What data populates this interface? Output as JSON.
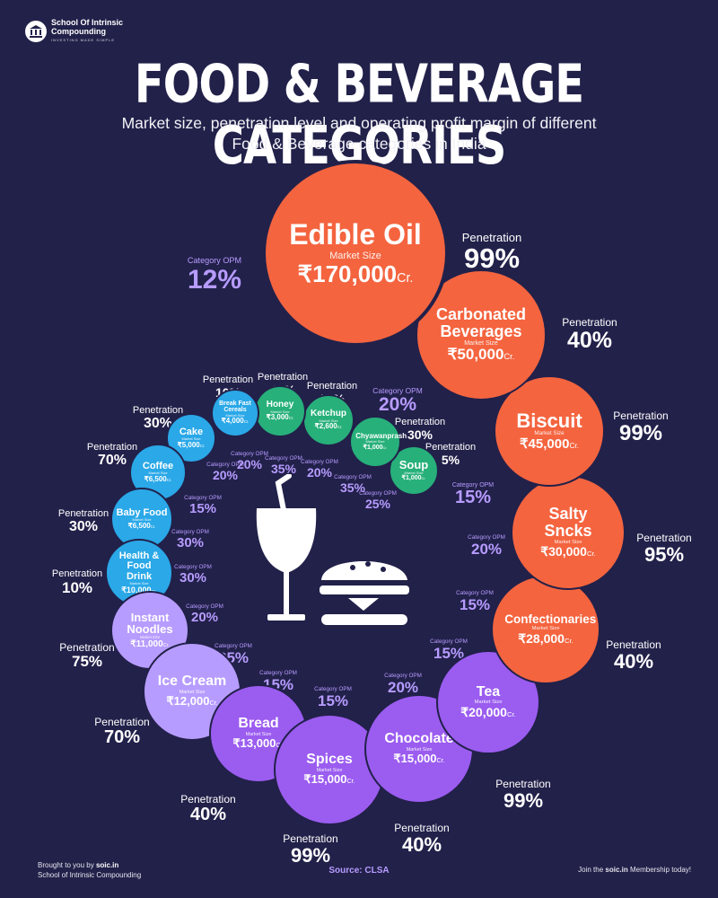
{
  "brand": {
    "name": "School Of Intrinsic Compounding",
    "tagline": "INVESTING MADE SIMPLE"
  },
  "title": "FOOD & BEVERAGE CATEGORIES",
  "subtitle": "Market size, penetration level and operating profit margin of different Food & Beverage categories in India",
  "market_size_label": "Market Size",
  "penetration_label": "Penetration",
  "opm_label": "Category OPM",
  "unit": "Cr.",
  "colors": {
    "background": "#22214a",
    "orange": "#f4643f",
    "green": "#27b07a",
    "blue": "#2aa8e8",
    "purple": "#9b5cf0",
    "lavender": "#b79cff"
  },
  "center_icon": "food-beverage-icon",
  "categories": [
    {
      "name": "Edible Oil",
      "market_size": "₹170,000",
      "penetration": "99%",
      "opm": "12%"
    },
    {
      "name": "Carbonated Beverages",
      "market_size": "₹50,000",
      "penetration": "40%",
      "opm": "20%"
    },
    {
      "name": "Biscuit",
      "market_size": "₹45,000",
      "penetration": "99%",
      "opm": "15%"
    },
    {
      "name": "Salty Sncks",
      "market_size": "₹30,000",
      "penetration": "95%",
      "opm": "20%"
    },
    {
      "name": "Confectionaries",
      "market_size": "₹28,000",
      "penetration": "40%",
      "opm": "15%"
    },
    {
      "name": "Tea",
      "market_size": "₹20,000",
      "penetration": "99%",
      "opm": "15%"
    },
    {
      "name": "Chocolate",
      "market_size": "₹15,000",
      "penetration": "40%",
      "opm": "20%"
    },
    {
      "name": "Spices",
      "market_size": "₹15,000",
      "penetration": "99%",
      "opm": "15%"
    },
    {
      "name": "Bread",
      "market_size": "₹13,000",
      "penetration": "40%",
      "opm": "15%"
    },
    {
      "name": "Ice Cream",
      "market_size": "₹12,000",
      "penetration": "70%",
      "opm": "25%"
    },
    {
      "name": "Instant Noodles",
      "market_size": "₹11,000",
      "penetration": "75%",
      "opm": "20%"
    },
    {
      "name": "Health & Food Drink",
      "market_size": "₹10,000",
      "penetration": "10%",
      "opm": "30%"
    },
    {
      "name": "Baby Food",
      "market_size": "₹6,500",
      "penetration": "30%",
      "opm": "30%"
    },
    {
      "name": "Coffee",
      "market_size": "₹6,500",
      "penetration": "70%",
      "opm": "15%"
    },
    {
      "name": "Cake",
      "market_size": "₹5,000",
      "penetration": "30%",
      "opm": "20%"
    },
    {
      "name": "Break Fast Cereals",
      "market_size": "₹4,000",
      "penetration": "10%",
      "opm": "20%"
    },
    {
      "name": "Honey",
      "market_size": "₹3,000",
      "penetration": "40%",
      "opm": "35%"
    },
    {
      "name": "Ketchup",
      "market_size": "₹2,600",
      "penetration": "20%",
      "opm": "20%"
    },
    {
      "name": "Chyawanprash",
      "market_size": "₹1,000",
      "penetration": "30%",
      "opm": "35%"
    },
    {
      "name": "Soup",
      "market_size": "₹1,000",
      "penetration": "5%",
      "opm": "25%"
    }
  ],
  "footer": {
    "brought_prefix": "Brought to you by",
    "brought_site": "soic.in",
    "org": "School of Intrinsic Compounding",
    "source": "Source: CLSA",
    "join_prefix": "Join the",
    "join_site": "soic.in",
    "join_suffix": "Membership today!"
  }
}
